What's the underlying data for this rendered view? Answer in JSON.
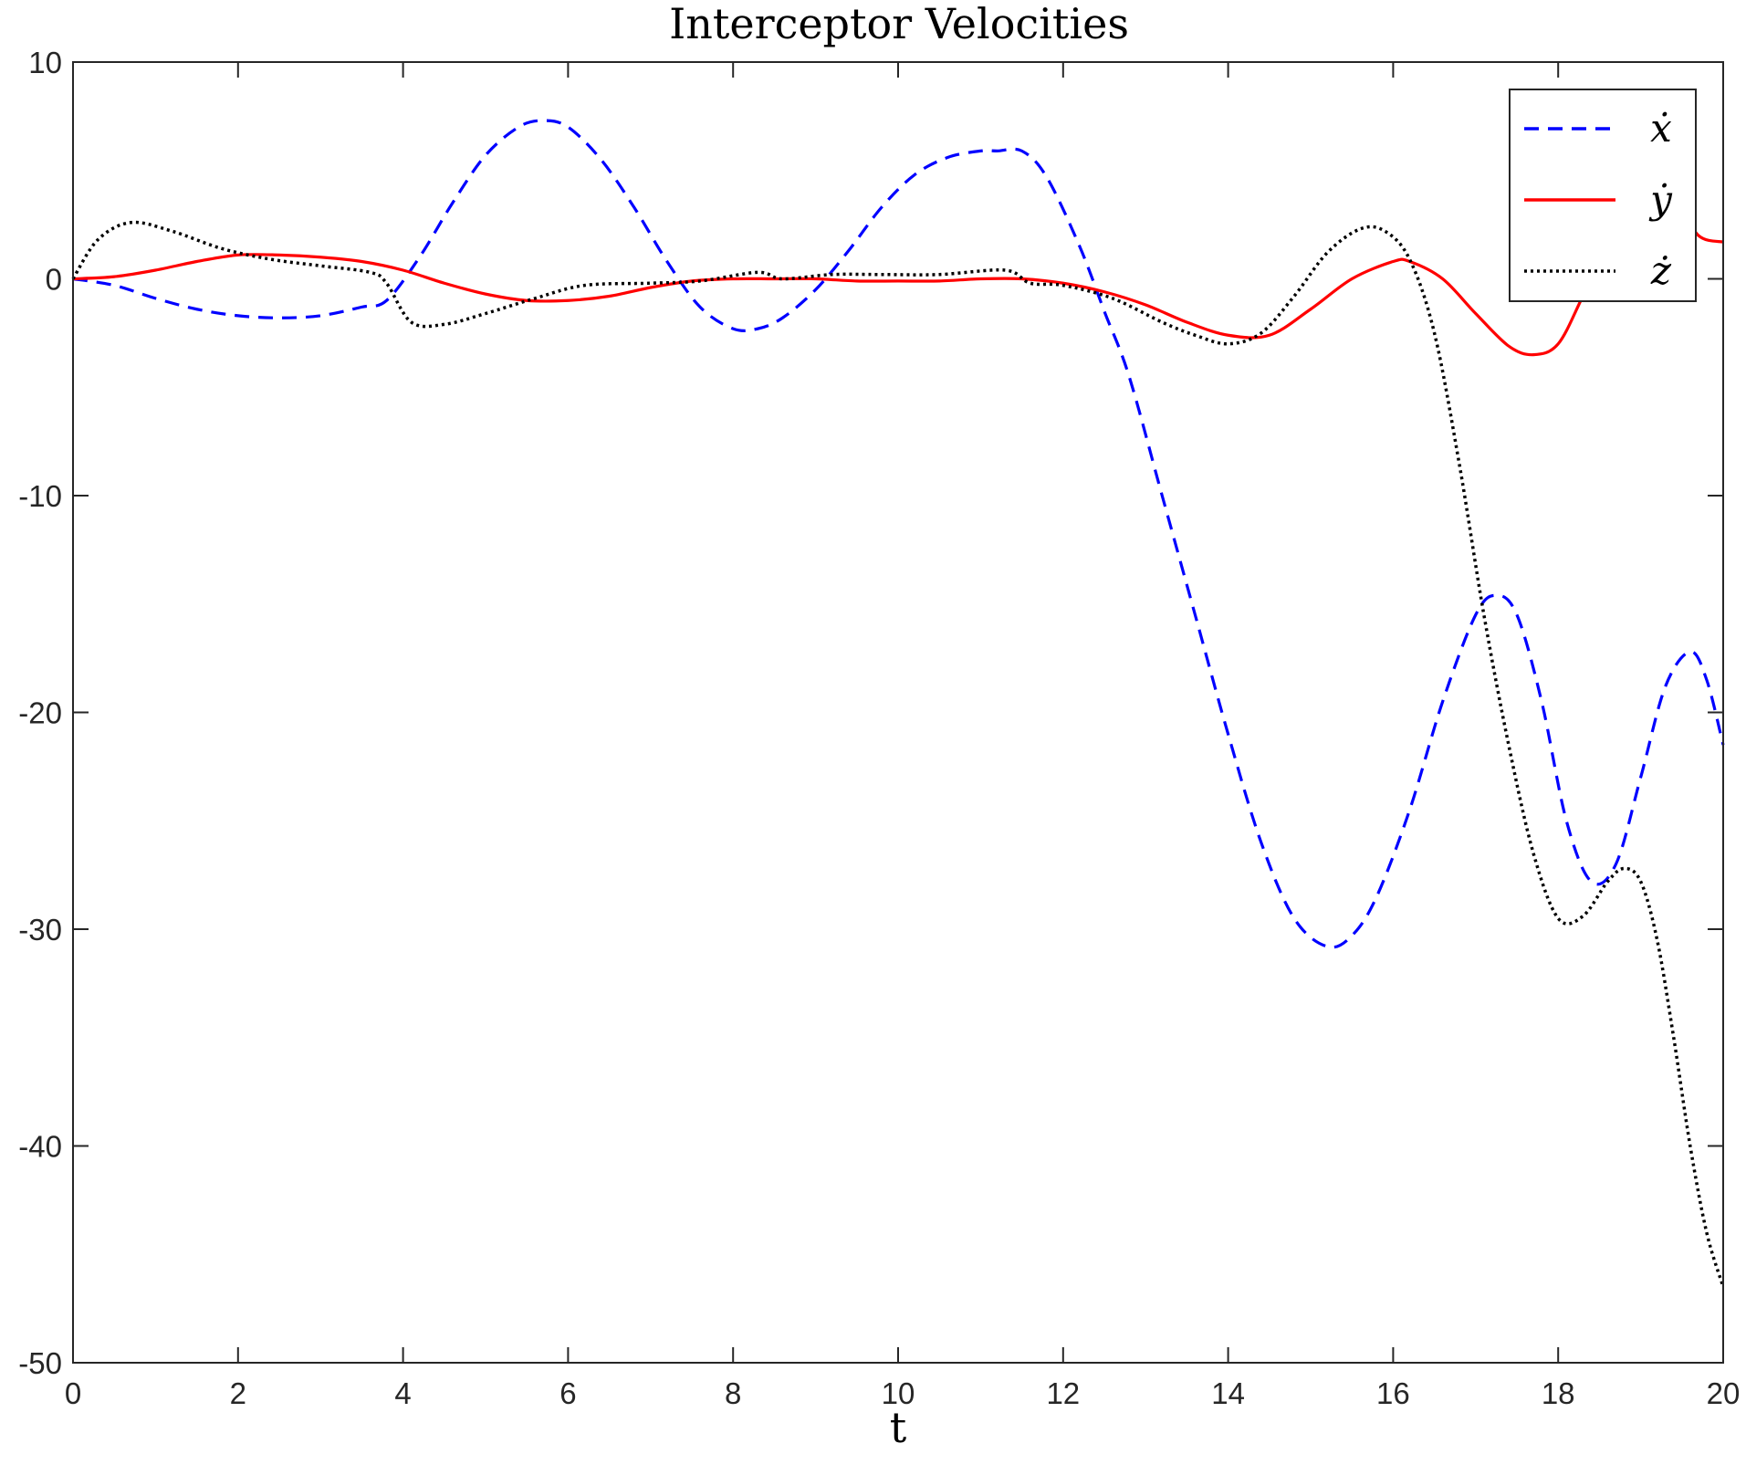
{
  "chart_data": {
    "type": "line",
    "title": "Interceptor Velocities",
    "xlabel": "t",
    "ylabel": "",
    "xlim": [
      0,
      20
    ],
    "ylim": [
      -50,
      10
    ],
    "xticks": [
      0,
      2,
      4,
      6,
      8,
      10,
      12,
      14,
      16,
      18,
      20
    ],
    "yticks": [
      -50,
      -40,
      -30,
      -20,
      -10,
      0,
      10
    ],
    "grid": false,
    "legend_position": "top-right",
    "series": [
      {
        "name": "ẋ",
        "color": "#0000ff",
        "style": "dashed",
        "x": [
          0,
          0.5,
          1,
          1.5,
          2,
          2.5,
          3,
          3.5,
          3.8,
          4.2,
          4.6,
          5,
          5.4,
          5.7,
          6,
          6.4,
          6.8,
          7.2,
          7.6,
          8,
          8.3,
          8.6,
          9,
          9.4,
          9.8,
          10.2,
          10.6,
          11,
          11.2,
          11.5,
          11.8,
          12.2,
          12.5,
          12.8,
          13.2,
          13.6,
          14,
          14.4,
          14.8,
          15.2,
          15.5,
          15.8,
          16.2,
          16.6,
          17,
          17.25,
          17.5,
          17.8,
          18.1,
          18.4,
          18.7,
          19,
          19.3,
          19.6,
          19.8,
          20
        ],
        "y": [
          0,
          -0.3,
          -0.9,
          -1.4,
          -1.7,
          -1.8,
          -1.7,
          -1.3,
          -1.0,
          1.0,
          3.5,
          5.7,
          7.0,
          7.3,
          7.0,
          5.5,
          3.3,
          0.8,
          -1.3,
          -2.3,
          -2.3,
          -1.8,
          -0.5,
          1.3,
          3.3,
          4.8,
          5.6,
          5.9,
          5.9,
          5.9,
          4.7,
          1.5,
          -1.5,
          -4.5,
          -10.0,
          -15.5,
          -21.0,
          -26.0,
          -29.5,
          -30.8,
          -30.3,
          -28.5,
          -24.5,
          -19.5,
          -15.5,
          -14.6,
          -15.5,
          -19.5,
          -25.0,
          -27.8,
          -27.0,
          -23.0,
          -18.8,
          -17.2,
          -18.5,
          -21.5
        ]
      },
      {
        "name": "ẏ",
        "color": "#ff0000",
        "style": "solid",
        "x": [
          0,
          0.5,
          1,
          1.5,
          2,
          2.5,
          3,
          3.5,
          4,
          4.5,
          5,
          5.5,
          6,
          6.5,
          7,
          7.5,
          8,
          8.5,
          9,
          9.5,
          10,
          10.5,
          11,
          11.5,
          12,
          12.5,
          13,
          13.5,
          14,
          14.5,
          15,
          15.5,
          16,
          16.2,
          16.6,
          17,
          17.4,
          17.7,
          18,
          18.3,
          18.6,
          19,
          19.4,
          19.7,
          20
        ],
        "y": [
          0,
          0.1,
          0.4,
          0.8,
          1.1,
          1.1,
          1.0,
          0.8,
          0.4,
          -0.2,
          -0.7,
          -1.0,
          -1.0,
          -0.8,
          -0.4,
          -0.1,
          0,
          0,
          0,
          -0.1,
          -0.1,
          -0.1,
          0,
          0,
          -0.2,
          -0.6,
          -1.2,
          -2.0,
          -2.6,
          -2.6,
          -1.4,
          0.0,
          0.8,
          0.8,
          0.0,
          -1.6,
          -3.1,
          -3.5,
          -3.0,
          -0.8,
          1.5,
          3.2,
          3.7,
          2.0,
          1.7
        ]
      },
      {
        "name": "ż",
        "color": "#000000",
        "style": "dotted",
        "x": [
          0,
          0.3,
          0.7,
          1.2,
          1.8,
          2.4,
          3,
          3.6,
          3.8,
          4.1,
          4.5,
          5,
          5.6,
          6.2,
          7,
          7.6,
          8.3,
          8.6,
          9.2,
          9.8,
          10.5,
          11.3,
          11.6,
          12,
          12.6,
          13.2,
          13.6,
          14,
          14.4,
          14.8,
          15.2,
          15.6,
          15.9,
          16.2,
          16.5,
          16.8,
          17.1,
          17.4,
          17.7,
          18,
          18.3,
          18.6,
          18.8,
          19,
          19.2,
          19.4,
          19.6,
          19.8,
          20
        ],
        "y": [
          0,
          1.8,
          2.6,
          2.2,
          1.4,
          0.9,
          0.6,
          0.3,
          -0.2,
          -2.0,
          -2.1,
          -1.6,
          -0.9,
          -0.3,
          -0.2,
          -0.1,
          0.3,
          0.0,
          0.2,
          0.2,
          0.2,
          0.4,
          -0.2,
          -0.3,
          -0.9,
          -2.0,
          -2.6,
          -3.0,
          -2.5,
          -0.8,
          1.2,
          2.3,
          2.2,
          0.9,
          -2.5,
          -8.5,
          -15.5,
          -21.5,
          -26.5,
          -29.5,
          -29.4,
          -27.8,
          -27.2,
          -27.8,
          -30.5,
          -35.0,
          -40.0,
          -44.0,
          -46.5
        ]
      }
    ]
  }
}
